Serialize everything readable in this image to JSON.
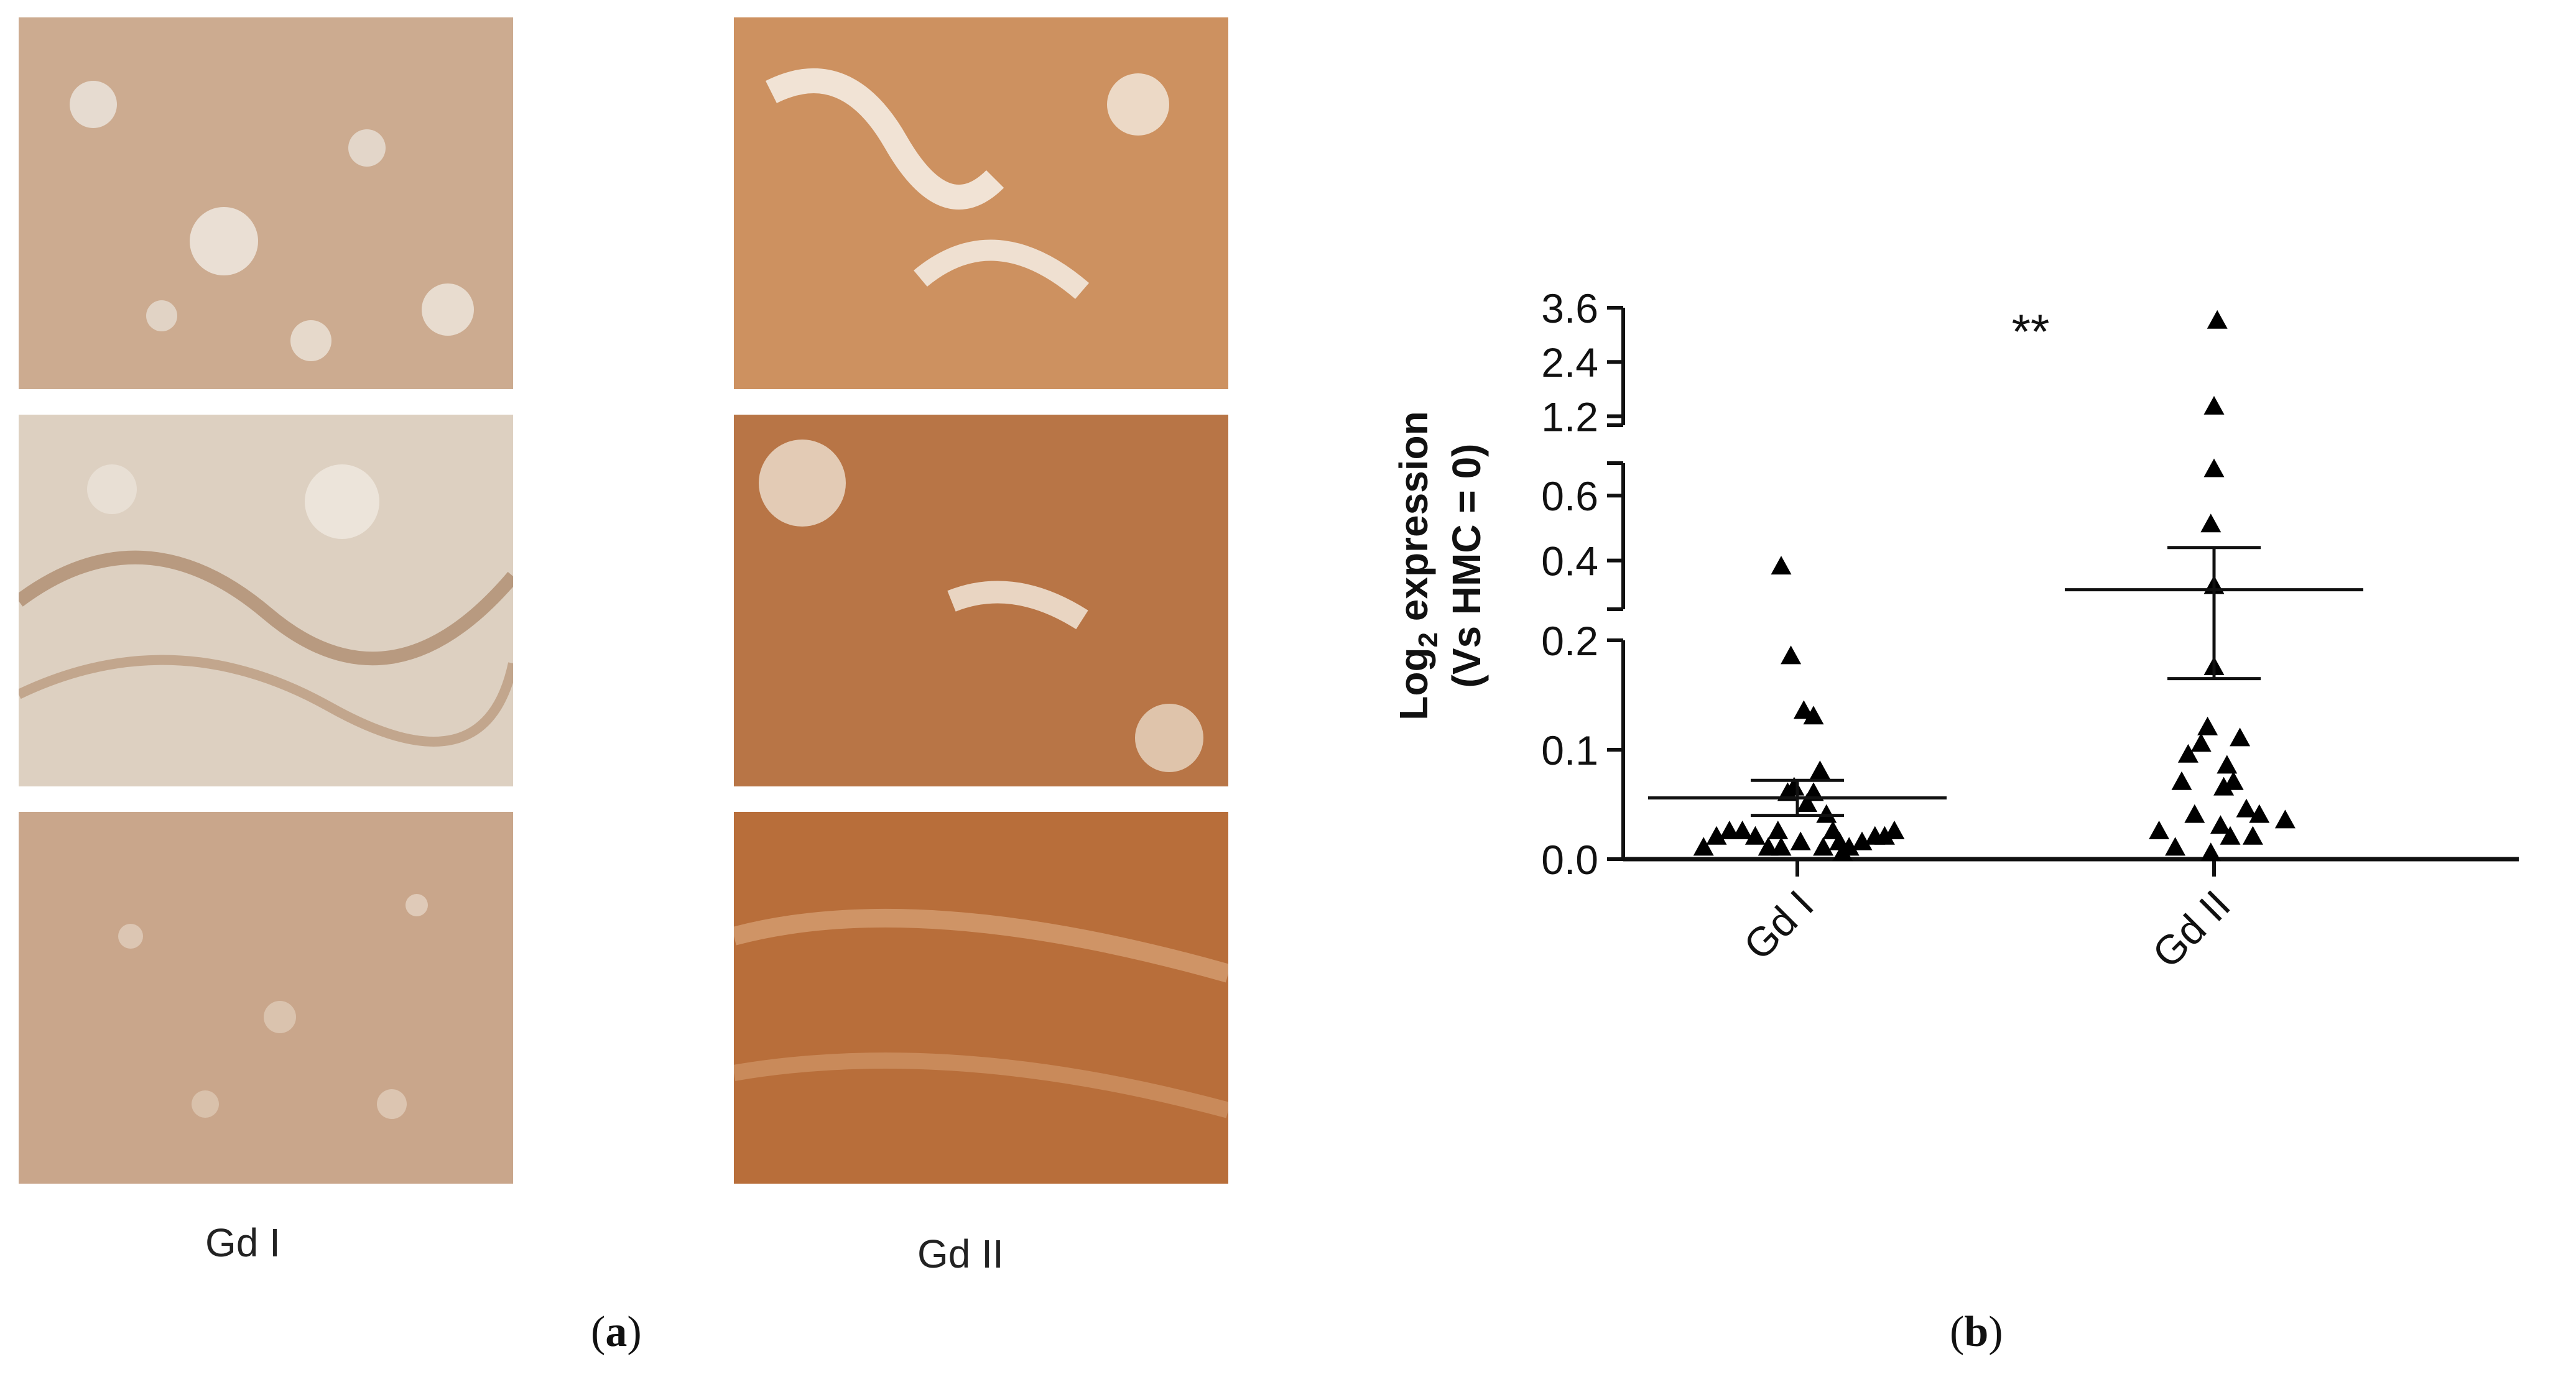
{
  "panel_a": {
    "group_left_label": "Gd I",
    "group_right_label": "Gd II",
    "sub_label_open": "(",
    "sub_label_letter": "a",
    "sub_label_close": ")"
  },
  "panel_b": {
    "sub_label_open": "(",
    "sub_label_letter": "b",
    "sub_label_close": ")"
  },
  "colors": {
    "gd1_tissue": "#c7a489",
    "gd1_tissue_light": "#ddc9b7",
    "gd2_tissue": "#c98a57",
    "gd2_tissue_dark": "#b26a36"
  },
  "chart_data": {
    "type": "scatter",
    "ylabel_line1_prefix": "Log",
    "ylabel_line1_sub": "2",
    "ylabel_line1_suffix": " expression",
    "ylabel_line2": "(Vs HMC = 0)",
    "categories": [
      "Gd I",
      "Gd II"
    ],
    "significance": "**",
    "y_segments": [
      {
        "range": [
          0.0,
          0.2
        ],
        "ticks": [
          0.0,
          0.1,
          0.2
        ],
        "tick_labels": [
          "0.0",
          "0.1",
          "0.2"
        ]
      },
      {
        "range": [
          0.25,
          0.7
        ],
        "ticks": [
          0.4,
          0.6
        ],
        "tick_labels": [
          "0.4",
          "0.6"
        ]
      },
      {
        "range": [
          1.0,
          3.6
        ],
        "ticks": [
          1.2,
          2.4,
          3.6
        ],
        "tick_labels": [
          "1.2",
          "2.4",
          "3.6"
        ]
      }
    ],
    "series": [
      {
        "category": "Gd I",
        "marker": "triangle",
        "mean": 0.056,
        "sem_upper": 0.072,
        "sem_lower": 0.04,
        "points": [
          [
            -0.29,
            0.01
          ],
          [
            -0.25,
            0.02
          ],
          [
            -0.21,
            0.025
          ],
          [
            -0.17,
            0.025
          ],
          [
            -0.13,
            0.02
          ],
          [
            -0.09,
            0.01
          ],
          [
            -0.06,
            0.025
          ],
          [
            -0.03,
            0.06
          ],
          [
            -0.01,
            0.065
          ],
          [
            0.01,
            0.015
          ],
          [
            0.03,
            0.05
          ],
          [
            0.05,
            0.06
          ],
          [
            0.07,
            0.08
          ],
          [
            0.09,
            0.04
          ],
          [
            0.11,
            0.025
          ],
          [
            0.13,
            0.015
          ],
          [
            0.16,
            0.01
          ],
          [
            0.2,
            0.015
          ],
          [
            0.24,
            0.02
          ],
          [
            0.27,
            0.02
          ],
          [
            0.3,
            0.025
          ],
          [
            -0.05,
            0.01
          ],
          [
            0.08,
            0.01
          ],
          [
            0.14,
            0.005
          ],
          [
            0.02,
            0.135
          ],
          [
            0.05,
            0.13
          ],
          [
            -0.02,
            0.185
          ],
          [
            -0.05,
            0.38
          ]
        ]
      },
      {
        "category": "Gd II",
        "marker": "triangle",
        "mean": 0.31,
        "sem_upper": 0.44,
        "sem_lower": 0.165,
        "points": [
          [
            -0.17,
            0.025
          ],
          [
            -0.12,
            0.01
          ],
          [
            -0.1,
            0.07
          ],
          [
            -0.08,
            0.095
          ],
          [
            -0.06,
            0.04
          ],
          [
            -0.04,
            0.105
          ],
          [
            -0.02,
            0.12
          ],
          [
            -0.01,
            0.005
          ],
          [
            0.0,
            0.175
          ],
          [
            0.0,
            0.32
          ],
          [
            0.02,
            0.03
          ],
          [
            0.03,
            0.065
          ],
          [
            0.04,
            0.085
          ],
          [
            0.05,
            0.02
          ],
          [
            0.06,
            0.07
          ],
          [
            0.08,
            0.11
          ],
          [
            0.1,
            0.045
          ],
          [
            0.12,
            0.02
          ],
          [
            0.14,
            0.04
          ],
          [
            0.22,
            0.035
          ],
          [
            -0.01,
            0.51
          ],
          [
            0.0,
            0.68
          ],
          [
            0.0,
            1.4
          ],
          [
            0.01,
            3.3
          ]
        ]
      }
    ]
  }
}
